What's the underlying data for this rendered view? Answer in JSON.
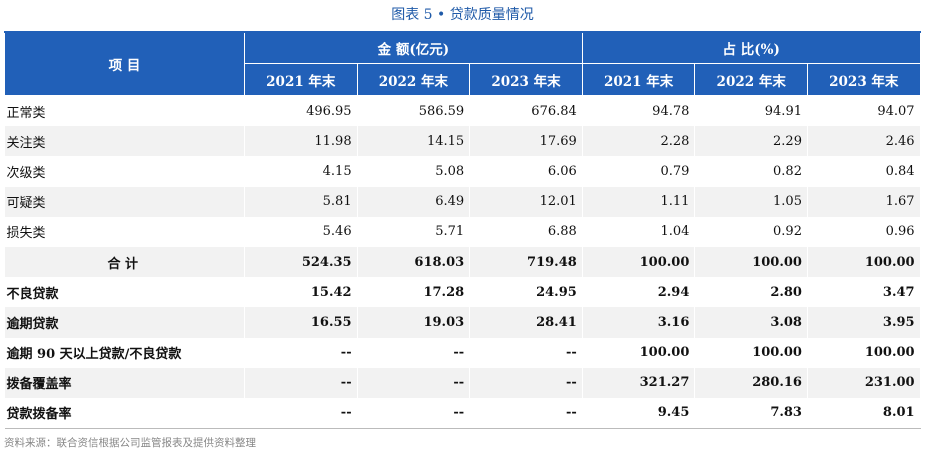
{
  "caption": "图表 5 • 贷款质量情况",
  "header": {
    "item": "项 目",
    "amount_group": "金 额(亿元)",
    "ratio_group": "占 比(%)",
    "years": [
      "2021 年末",
      "2022 年末",
      "2023 年末",
      "2021 年末",
      "2022 年末",
      "2023 年末"
    ]
  },
  "rows": [
    {
      "label": "正常类",
      "values": [
        "496.95",
        "586.59",
        "676.84",
        "94.78",
        "94.91",
        "94.07"
      ]
    },
    {
      "label": "关注类",
      "values": [
        "11.98",
        "14.15",
        "17.69",
        "2.28",
        "2.29",
        "2.46"
      ]
    },
    {
      "label": "次级类",
      "values": [
        "4.15",
        "5.08",
        "6.06",
        "0.79",
        "0.82",
        "0.84"
      ]
    },
    {
      "label": "可疑类",
      "values": [
        "5.81",
        "6.49",
        "12.01",
        "1.11",
        "1.05",
        "1.67"
      ]
    },
    {
      "label": "损失类",
      "values": [
        "5.46",
        "5.71",
        "6.88",
        "1.04",
        "0.92",
        "0.96"
      ]
    },
    {
      "label": "合 计",
      "values": [
        "524.35",
        "618.03",
        "719.48",
        "100.00",
        "100.00",
        "100.00"
      ]
    },
    {
      "label": "不良贷款",
      "values": [
        "15.42",
        "17.28",
        "24.95",
        "2.94",
        "2.80",
        "3.47"
      ]
    },
    {
      "label": "逾期贷款",
      "values": [
        "16.55",
        "19.03",
        "28.41",
        "3.16",
        "3.08",
        "3.95"
      ]
    },
    {
      "label": "逾期 90 天以上贷款/不良贷款",
      "values": [
        "--",
        "--",
        "--",
        "100.00",
        "100.00",
        "100.00"
      ]
    },
    {
      "label": "拨备覆盖率",
      "values": [
        "--",
        "--",
        "--",
        "321.27",
        "280.16",
        "231.00"
      ]
    },
    {
      "label": "贷款拨备率",
      "values": [
        "--",
        "--",
        "--",
        "9.45",
        "7.83",
        "8.01"
      ]
    }
  ],
  "source": "资料来源：联合资信根据公司监管报表及提供资料整理"
}
